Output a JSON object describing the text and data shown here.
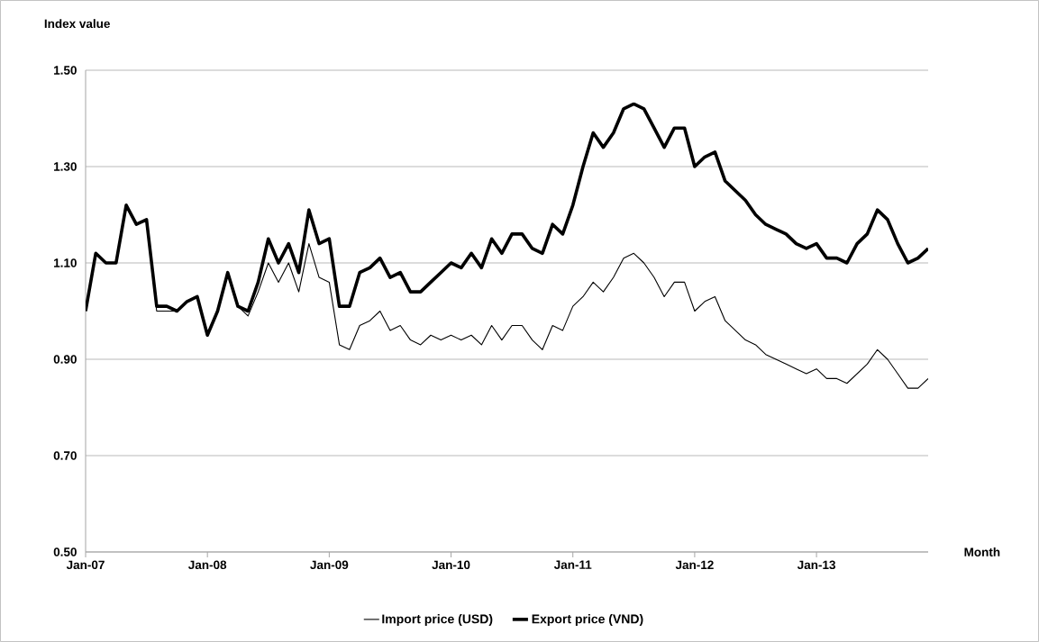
{
  "chart_data": {
    "type": "line",
    "ylabel": "Index value",
    "xlabel": "Month",
    "grid": "y",
    "legend": "bottom",
    "x": [
      "2007-01",
      "2007-02",
      "2007-03",
      "2007-04",
      "2007-05",
      "2007-06",
      "2007-07",
      "2007-08",
      "2007-09",
      "2007-10",
      "2007-11",
      "2007-12",
      "2008-01",
      "2008-02",
      "2008-03",
      "2008-04",
      "2008-05",
      "2008-06",
      "2008-07",
      "2008-08",
      "2008-09",
      "2008-10",
      "2008-11",
      "2008-12",
      "2009-01",
      "2009-02",
      "2009-03",
      "2009-04",
      "2009-05",
      "2009-06",
      "2009-07",
      "2009-08",
      "2009-09",
      "2009-10",
      "2009-11",
      "2009-12",
      "2010-01",
      "2010-02",
      "2010-03",
      "2010-04",
      "2010-05",
      "2010-06",
      "2010-07",
      "2010-08",
      "2010-09",
      "2010-10",
      "2010-11",
      "2010-12",
      "2011-01",
      "2011-02",
      "2011-03",
      "2011-04",
      "2011-05",
      "2011-06",
      "2011-07",
      "2011-08",
      "2011-09",
      "2011-10",
      "2011-11",
      "2011-12",
      "2012-01",
      "2012-02",
      "2012-03",
      "2012-04",
      "2012-05",
      "2012-06",
      "2012-07",
      "2012-08",
      "2012-09",
      "2012-10",
      "2012-11",
      "2012-12",
      "2013-01",
      "2013-02",
      "2013-03",
      "2013-04",
      "2013-05",
      "2013-06",
      "2013-07",
      "2013-08",
      "2013-09",
      "2013-10",
      "2013-11",
      "2013-12"
    ],
    "xlim": [
      "2007-01",
      "2013-12"
    ],
    "xticks": [
      {
        "value": "2007-01",
        "label": "Jan-07"
      },
      {
        "value": "2008-01",
        "label": "Jan-08"
      },
      {
        "value": "2009-01",
        "label": "Jan-09"
      },
      {
        "value": "2010-01",
        "label": "Jan-10"
      },
      {
        "value": "2011-01",
        "label": "Jan-11"
      },
      {
        "value": "2012-01",
        "label": "Jan-12"
      },
      {
        "value": "2013-01",
        "label": "Jan-13"
      }
    ],
    "ylim": [
      0.5,
      1.5
    ],
    "yticks": [
      {
        "value": 0.5,
        "label": "0.50"
      },
      {
        "value": 0.7,
        "label": "0.70"
      },
      {
        "value": 0.9,
        "label": "0.90"
      },
      {
        "value": 1.1,
        "label": "1.10"
      },
      {
        "value": 1.3,
        "label": "1.30"
      },
      {
        "value": 1.5,
        "label": "1.50"
      }
    ],
    "series": [
      {
        "name": "Import price (USD)",
        "color": "#000000",
        "values": [
          1.0,
          1.12,
          1.1,
          1.1,
          1.22,
          1.18,
          1.19,
          1.0,
          1.0,
          1.0,
          1.02,
          1.03,
          0.95,
          1.0,
          1.08,
          1.01,
          0.99,
          1.04,
          1.1,
          1.06,
          1.1,
          1.04,
          1.14,
          1.07,
          1.06,
          0.93,
          0.92,
          0.97,
          0.98,
          1.0,
          0.96,
          0.97,
          0.94,
          0.93,
          0.95,
          0.94,
          0.95,
          0.94,
          0.95,
          0.93,
          0.97,
          0.94,
          0.97,
          0.97,
          0.94,
          0.92,
          0.97,
          0.96,
          1.01,
          1.03,
          1.06,
          1.04,
          1.07,
          1.11,
          1.12,
          1.1,
          1.07,
          1.03,
          1.06,
          1.06,
          1.0,
          1.02,
          1.03,
          0.98,
          0.96,
          0.94,
          0.93,
          0.91,
          0.9,
          0.89,
          0.88,
          0.87,
          0.88,
          0.86,
          0.86,
          0.85,
          0.87,
          0.89,
          0.92,
          0.9,
          0.87,
          0.84,
          0.84,
          0.86
        ]
      },
      {
        "name": "Export price (VND)",
        "color": "#000000",
        "values": [
          1.0,
          1.12,
          1.1,
          1.1,
          1.22,
          1.18,
          1.19,
          1.01,
          1.01,
          1.0,
          1.02,
          1.03,
          0.95,
          1.0,
          1.08,
          1.01,
          1.0,
          1.06,
          1.15,
          1.1,
          1.14,
          1.08,
          1.21,
          1.14,
          1.15,
          1.01,
          1.01,
          1.08,
          1.09,
          1.11,
          1.07,
          1.08,
          1.04,
          1.04,
          1.06,
          1.08,
          1.1,
          1.09,
          1.12,
          1.09,
          1.15,
          1.12,
          1.16,
          1.16,
          1.13,
          1.12,
          1.18,
          1.16,
          1.22,
          1.3,
          1.37,
          1.34,
          1.37,
          1.42,
          1.43,
          1.42,
          1.38,
          1.34,
          1.38,
          1.38,
          1.3,
          1.32,
          1.33,
          1.27,
          1.25,
          1.23,
          1.2,
          1.18,
          1.17,
          1.16,
          1.14,
          1.13,
          1.14,
          1.11,
          1.11,
          1.1,
          1.14,
          1.16,
          1.21,
          1.19,
          1.14,
          1.1,
          1.11,
          1.13
        ]
      }
    ]
  }
}
